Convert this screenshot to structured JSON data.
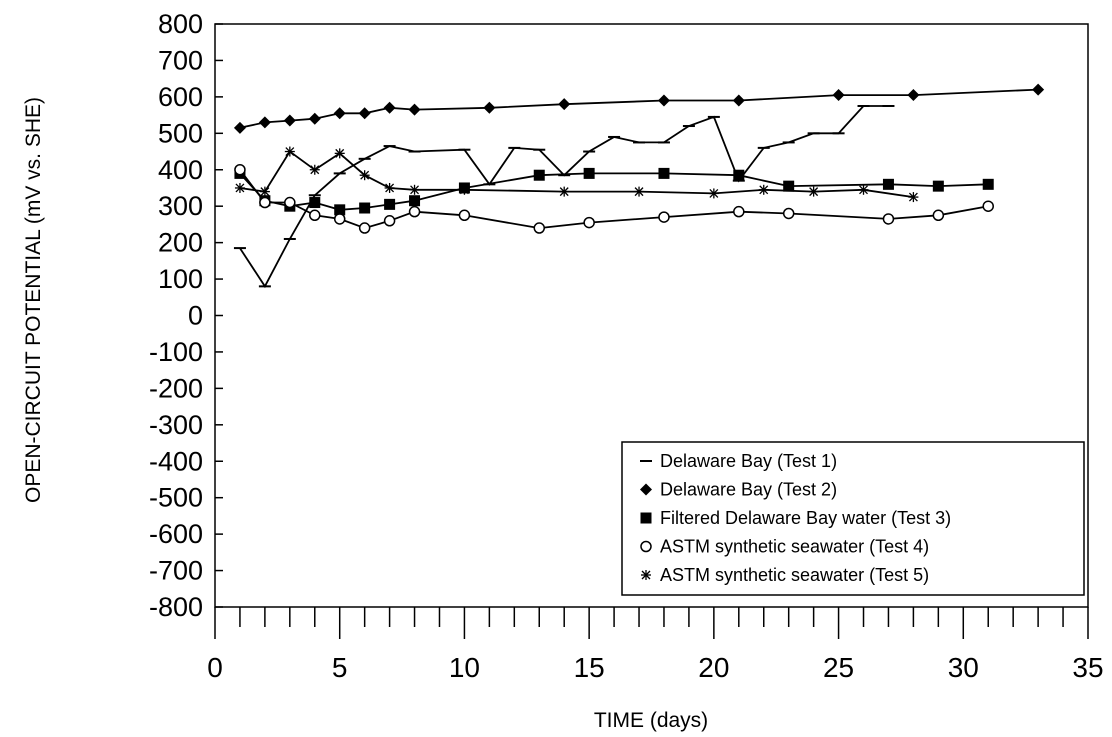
{
  "chart_data": {
    "type": "line",
    "xlabel": "TIME (days)",
    "ylabel": "OPEN-CIRCUIT POTENTIAL (mV vs. SHE)",
    "xlim": [
      0,
      35
    ],
    "ylim": [
      -800,
      800
    ],
    "xticks": [
      "0",
      "5",
      "10",
      "15",
      "20",
      "25",
      "30",
      "35"
    ],
    "yticks": [
      "800",
      "700",
      "600",
      "500",
      "400",
      "300",
      "200",
      "100",
      "0",
      "-100",
      "-200",
      "-300",
      "-400",
      "-500",
      "-600",
      "-700",
      "-800"
    ],
    "legend_position": "bottom-right",
    "series": [
      {
        "name": "Delaware Bay (Test 1)",
        "marker": "dash",
        "x": [
          1,
          2,
          3,
          4,
          5,
          6,
          7,
          8,
          10,
          11,
          12,
          13,
          14,
          15,
          16,
          17,
          18,
          19,
          20,
          21,
          22,
          23,
          24,
          25,
          26,
          27
        ],
        "y": [
          185,
          80,
          210,
          330,
          390,
          430,
          465,
          450,
          455,
          360,
          460,
          455,
          385,
          450,
          490,
          475,
          475,
          520,
          545,
          370,
          460,
          475,
          500,
          500,
          575,
          575
        ]
      },
      {
        "name": "Delaware Bay (Test 2)",
        "marker": "diamond",
        "x": [
          1,
          2,
          3,
          4,
          5,
          6,
          7,
          8,
          11,
          14,
          18,
          21,
          25,
          28,
          33
        ],
        "y": [
          515,
          530,
          535,
          540,
          555,
          555,
          570,
          565,
          570,
          580,
          590,
          590,
          605,
          605,
          620
        ]
      },
      {
        "name": "Filtered Delaware Bay water (Test 3)",
        "marker": "square",
        "x": [
          1,
          2,
          3,
          4,
          5,
          6,
          7,
          8,
          10,
          13,
          15,
          18,
          21,
          23,
          27,
          29,
          31
        ],
        "y": [
          390,
          315,
          300,
          310,
          290,
          295,
          305,
          315,
          350,
          385,
          390,
          390,
          385,
          355,
          360,
          355,
          360
        ]
      },
      {
        "name": "ASTM synthetic seawater (Test 4)",
        "marker": "circle",
        "x": [
          1,
          2,
          3,
          4,
          5,
          6,
          7,
          8,
          10,
          13,
          15,
          18,
          21,
          23,
          27,
          29,
          31
        ],
        "y": [
          400,
          310,
          310,
          275,
          265,
          240,
          260,
          285,
          275,
          240,
          255,
          270,
          285,
          280,
          265,
          275,
          300
        ]
      },
      {
        "name": "ASTM synthetic seawater (Test 5)",
        "marker": "asterisk",
        "x": [
          1,
          2,
          3,
          4,
          5,
          6,
          7,
          8,
          10,
          14,
          17,
          20,
          22,
          24,
          26,
          28
        ],
        "y": [
          350,
          340,
          450,
          400,
          445,
          385,
          350,
          345,
          345,
          340,
          340,
          335,
          345,
          340,
          345,
          325
        ]
      }
    ]
  }
}
